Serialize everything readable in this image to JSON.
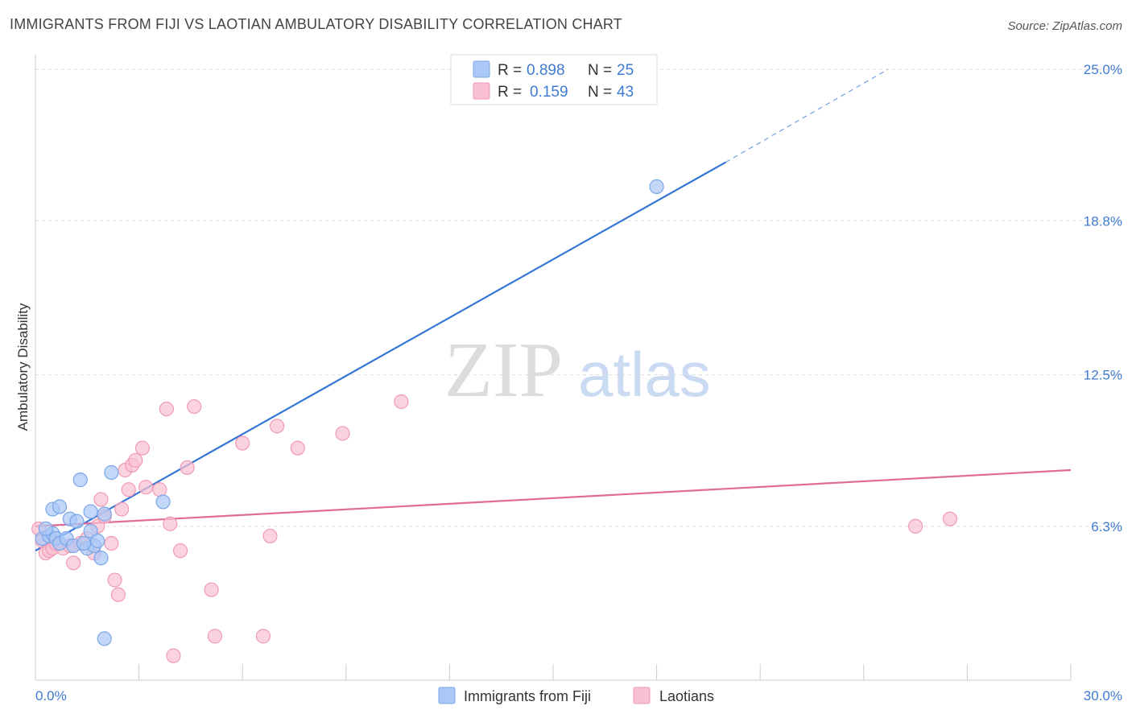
{
  "header": {
    "title": "IMMIGRANTS FROM FIJI VS LAOTIAN AMBULATORY DISABILITY CORRELATION CHART",
    "source": "Source: ZipAtlas.com"
  },
  "watermark": {
    "zip": "ZIP",
    "atlas": "atlas"
  },
  "legend_top": [
    {
      "r_label": "R =",
      "r_value": "0.898",
      "n_label": "N =",
      "n_value": "25",
      "color": "#a9c8f5",
      "stroke": "#7aa6e8"
    },
    {
      "r_label": "R =",
      "r_value": "0.159",
      "n_label": "N =",
      "n_value": "43",
      "color": "#f9c0d2",
      "stroke": "#ef9ab6"
    }
  ],
  "legend_bottom": [
    {
      "label": "Immigrants from Fiji",
      "color": "#a9c8f5",
      "stroke": "#7aa6e8"
    },
    {
      "label": "Laotians",
      "color": "#f9c0d2",
      "stroke": "#ef9ab6"
    }
  ],
  "chart_data": {
    "type": "scatter",
    "title": "IMMIGRANTS FROM FIJI VS LAOTIAN AMBULATORY DISABILITY CORRELATION CHART",
    "xlabel": "",
    "ylabel": "Ambulatory Disability",
    "xlim": [
      0,
      30
    ],
    "ylim": [
      0,
      25.6
    ],
    "x_tick_labels": [
      "0.0%",
      "30.0%"
    ],
    "y_ticks": [
      6.3,
      12.5,
      18.8,
      25.0
    ],
    "y_tick_labels": [
      "6.3%",
      "12.5%",
      "18.8%",
      "25.0%"
    ],
    "grid": true,
    "series": [
      {
        "name": "Immigrants from Fiji",
        "color": "#7aa6e8",
        "fill": "#a9c8f5",
        "line_color": "#3577d4",
        "trend": {
          "x0": 0.0,
          "y0": 5.3,
          "x1": 20.0,
          "y1": 21.2,
          "dash_x1": 24.7,
          "dash_y1": 25.0
        },
        "points": [
          [
            0.2,
            5.8
          ],
          [
            0.4,
            5.9
          ],
          [
            0.5,
            6.0
          ],
          [
            0.6,
            5.8
          ],
          [
            0.7,
            5.6
          ],
          [
            0.5,
            7.0
          ],
          [
            0.7,
            7.1
          ],
          [
            1.0,
            6.6
          ],
          [
            1.2,
            6.5
          ],
          [
            1.3,
            8.2
          ],
          [
            1.5,
            5.4
          ],
          [
            1.6,
            6.1
          ],
          [
            1.6,
            6.9
          ],
          [
            1.7,
            5.5
          ],
          [
            1.8,
            5.7
          ],
          [
            1.9,
            5.0
          ],
          [
            2.0,
            1.7
          ],
          [
            2.0,
            6.8
          ],
          [
            2.2,
            8.5
          ],
          [
            3.7,
            7.3
          ],
          [
            0.9,
            5.8
          ],
          [
            1.1,
            5.5
          ],
          [
            0.3,
            6.2
          ],
          [
            1.4,
            5.6
          ],
          [
            18.0,
            20.2
          ]
        ]
      },
      {
        "name": "Laotians",
        "color": "#ef9ab6",
        "fill": "#f9c0d2",
        "line_color": "#e06b94",
        "trend": {
          "x0": 0.0,
          "y0": 6.3,
          "x1": 30.0,
          "y1": 8.6
        },
        "points": [
          [
            0.1,
            6.2
          ],
          [
            0.2,
            5.7
          ],
          [
            0.3,
            5.2
          ],
          [
            0.4,
            5.3
          ],
          [
            0.5,
            5.4
          ],
          [
            0.6,
            5.6
          ],
          [
            0.8,
            5.4
          ],
          [
            1.0,
            5.5
          ],
          [
            1.1,
            4.8
          ],
          [
            1.3,
            5.6
          ],
          [
            1.5,
            5.8
          ],
          [
            1.7,
            5.2
          ],
          [
            1.8,
            6.3
          ],
          [
            1.9,
            7.4
          ],
          [
            2.0,
            6.7
          ],
          [
            2.2,
            5.6
          ],
          [
            2.3,
            4.1
          ],
          [
            2.4,
            3.5
          ],
          [
            2.5,
            7.0
          ],
          [
            2.6,
            8.6
          ],
          [
            2.7,
            7.8
          ],
          [
            2.8,
            8.8
          ],
          [
            2.9,
            9.0
          ],
          [
            3.1,
            9.5
          ],
          [
            3.2,
            7.9
          ],
          [
            3.6,
            7.8
          ],
          [
            3.8,
            11.1
          ],
          [
            3.9,
            6.4
          ],
          [
            4.0,
            1.0
          ],
          [
            4.2,
            5.3
          ],
          [
            4.4,
            8.7
          ],
          [
            4.6,
            11.2
          ],
          [
            5.1,
            3.7
          ],
          [
            5.2,
            1.8
          ],
          [
            6.0,
            9.7
          ],
          [
            6.6,
            1.8
          ],
          [
            6.8,
            5.9
          ],
          [
            7.0,
            10.4
          ],
          [
            7.6,
            9.5
          ],
          [
            8.9,
            10.1
          ],
          [
            10.6,
            11.4
          ],
          [
            25.5,
            6.3
          ],
          [
            26.5,
            6.6
          ]
        ]
      }
    ]
  }
}
